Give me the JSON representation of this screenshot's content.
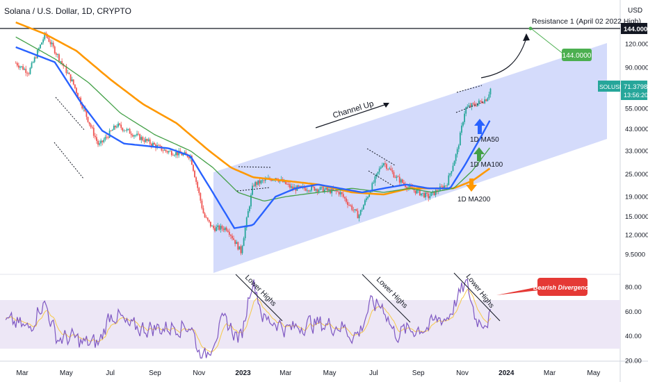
{
  "header": {
    "symbol_title": "Solana / U.S. Dollar, 1D, CRYPTO",
    "currency": "USD"
  },
  "colors": {
    "up_candle": "#26a69a",
    "down_candle": "#ef5350",
    "ma50": "#2962ff",
    "ma100": "#43a047",
    "ma200": "#ff9800",
    "channel_fill": "#c5cff9",
    "rsi_line": "#7e57c2",
    "rsi_signal": "#f7c948",
    "rsi_band": "#ede7f6",
    "target_label": "#4caf50",
    "divergence_label": "#e53935"
  },
  "chart_data": {
    "type": "line",
    "title": "Solana / U.S. Dollar, 1D, CRYPTO",
    "y_scale": "log",
    "price_axis_ticks": [
      "144.0000",
      "120.0000",
      "90.0000",
      "71.3798",
      "55.0000",
      "43.0000",
      "33.0000",
      "25.0000",
      "19.0000",
      "15.0000",
      "12.0000",
      "9.5000"
    ],
    "rsi_axis_ticks": [
      "80.00",
      "60.00",
      "40.00",
      "20.00"
    ],
    "x_axis_ticks": [
      "Mar",
      "May",
      "Jul",
      "Sep",
      "Nov",
      "2023",
      "Mar",
      "May",
      "Jul",
      "Sep",
      "Nov",
      "2024",
      "Mar",
      "May"
    ],
    "last_price": {
      "symbol": "SOLUSD",
      "value": "71.3798",
      "countdown": "13:56:20"
    },
    "resistance": {
      "label": "Resistance 1 (April 02 2022 High)",
      "value": "144.0000"
    },
    "target": "144.0000",
    "series": [
      {
        "name": "SOLUSD",
        "x": [
          "2022-02-20",
          "2022-03-10",
          "2022-04-02",
          "2022-05-10",
          "2022-06-15",
          "2022-07-10",
          "2022-08-15",
          "2022-09-15",
          "2022-10-20",
          "2022-11-08",
          "2022-11-20",
          "2022-12-10",
          "2022-12-29",
          "2023-01-15",
          "2023-02-15",
          "2023-03-10",
          "2023-04-10",
          "2023-05-15",
          "2023-06-10",
          "2023-07-14",
          "2023-08-01",
          "2023-08-20",
          "2023-09-15",
          "2023-10-10",
          "2023-10-25",
          "2023-11-05",
          "2023-11-20",
          "2023-12-05",
          "2023-12-11"
        ],
        "values": [
          95,
          85,
          135,
          75,
          35,
          45,
          38,
          33,
          31,
          15,
          13,
          13,
          9.8,
          22,
          24,
          21,
          21,
          20,
          15,
          29,
          24,
          21,
          19,
          22,
          33,
          55,
          58,
          62,
          71.4
        ]
      },
      {
        "name": "1D MA50",
        "x": [
          "2022-02-20",
          "2022-04-15",
          "2022-05-20",
          "2022-06-20",
          "2022-07-20",
          "2022-08-20",
          "2022-09-20",
          "2022-10-20",
          "2022-11-20",
          "2022-12-20",
          "2023-01-15",
          "2023-02-15",
          "2023-03-15",
          "2023-04-15",
          "2023-05-15",
          "2023-06-15",
          "2023-07-15",
          "2023-08-15",
          "2023-09-15",
          "2023-10-15",
          "2023-11-05",
          "2023-11-25",
          "2023-12-11"
        ],
        "values": [
          115,
          96,
          60,
          42,
          36,
          35,
          34,
          31,
          20,
          13,
          13.5,
          19,
          21,
          22,
          21,
          20,
          21,
          22,
          21,
          21,
          28,
          38,
          49
        ]
      },
      {
        "name": "1D MA100",
        "x": [
          "2022-02-20",
          "2022-04-15",
          "2022-06-01",
          "2022-07-15",
          "2022-09-01",
          "2022-10-20",
          "2022-11-20",
          "2022-12-25",
          "2023-01-30",
          "2023-03-01",
          "2023-04-15",
          "2023-06-01",
          "2023-07-15",
          "2023-08-20",
          "2023-09-20",
          "2023-10-20",
          "2023-11-15",
          "2023-12-11"
        ],
        "values": [
          130,
          100,
          75,
          52,
          40,
          33,
          27,
          20,
          18,
          19,
          20,
          21,
          20,
          21,
          20,
          21,
          26,
          35
        ]
      },
      {
        "name": "1D MA200",
        "x": [
          "2022-02-20",
          "2022-04-01",
          "2022-05-15",
          "2022-07-01",
          "2022-08-15",
          "2022-10-01",
          "2022-11-15",
          "2022-12-15",
          "2023-01-15",
          "2023-03-01",
          "2023-04-15",
          "2023-06-01",
          "2023-07-15",
          "2023-08-20",
          "2023-09-20",
          "2023-10-20",
          "2023-11-15",
          "2023-12-11"
        ],
        "values": [
          155,
          135,
          110,
          78,
          58,
          46,
          33,
          27,
          24,
          23,
          22,
          20,
          19.5,
          21,
          21,
          21,
          23,
          27
        ]
      }
    ],
    "annotations": {
      "channel": "Channel Up",
      "ma_labels": [
        "1D MA50",
        "1D MA100",
        "1D MA200"
      ],
      "rsi_text": [
        "Lower Highs",
        "Lower Highs",
        "Lower Highs"
      ],
      "divergence": "Bearish Divergence"
    }
  }
}
